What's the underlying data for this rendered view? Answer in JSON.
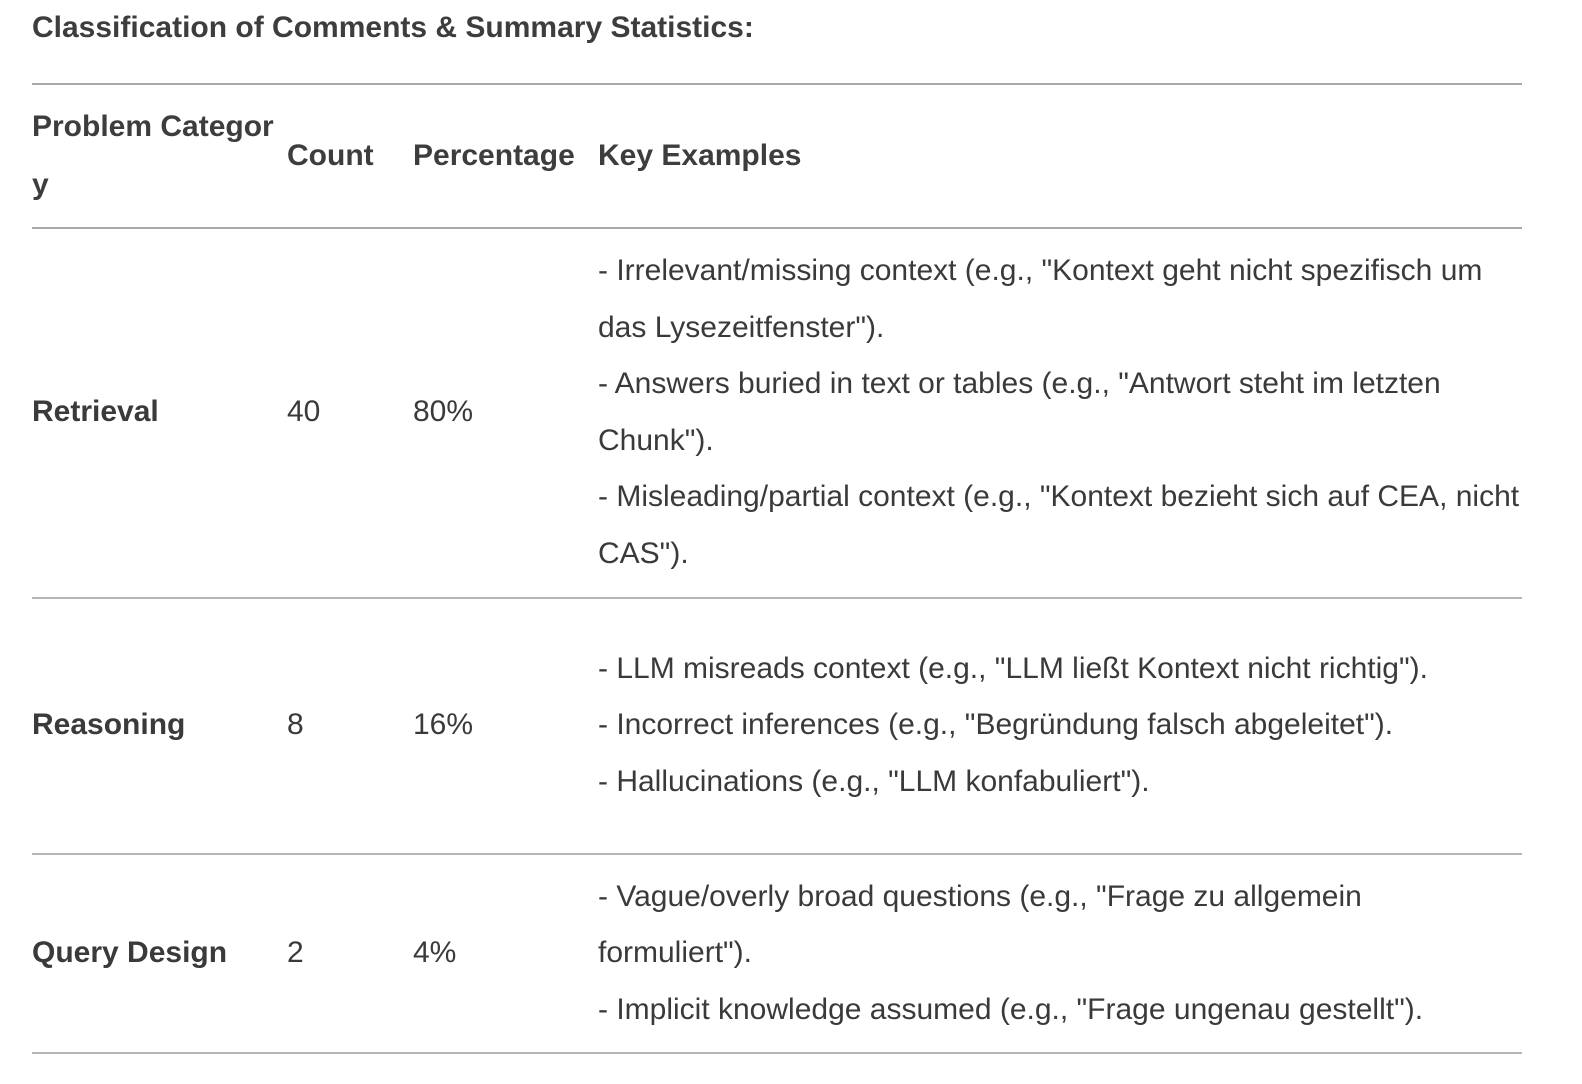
{
  "title": "Classification of Comments & Summary Statistics:",
  "table": {
    "headers": {
      "category": "Problem Category",
      "count": "Count",
      "percentage": "Percentage",
      "examples": "Key Examples"
    },
    "rows": [
      {
        "category": "Retrieval",
        "count": "40",
        "percentage": "80%",
        "examples": [
          "- Irrelevant/missing context (e.g., \"Kontext geht nicht spezifisch um das Lysezeitfenster\").",
          "- Answers buried in text or tables (e.g., \"Antwort steht im letzten Chunk\").",
          "- Misleading/partial context (e.g., \"Kontext bezieht sich auf CEA, nicht CAS\")."
        ]
      },
      {
        "category": "Reasoning",
        "count": "8",
        "percentage": "16%",
        "examples": [
          "- LLM misreads context (e.g., \"LLM ließt Kontext nicht richtig\").",
          "- Incorrect inferences (e.g., \"Begründung falsch abgeleitet\").",
          "- Hallucinations (e.g., \"LLM konfabuliert\")."
        ]
      },
      {
        "category": "Query Design",
        "count": "2",
        "percentage": "4%",
        "examples": [
          "- Vague/overly broad questions (e.g., \"Frage zu allgemein formuliert\").",
          "- Implicit knowledge assumed (e.g., \"Frage ungenau gestellt\")."
        ]
      }
    ]
  }
}
